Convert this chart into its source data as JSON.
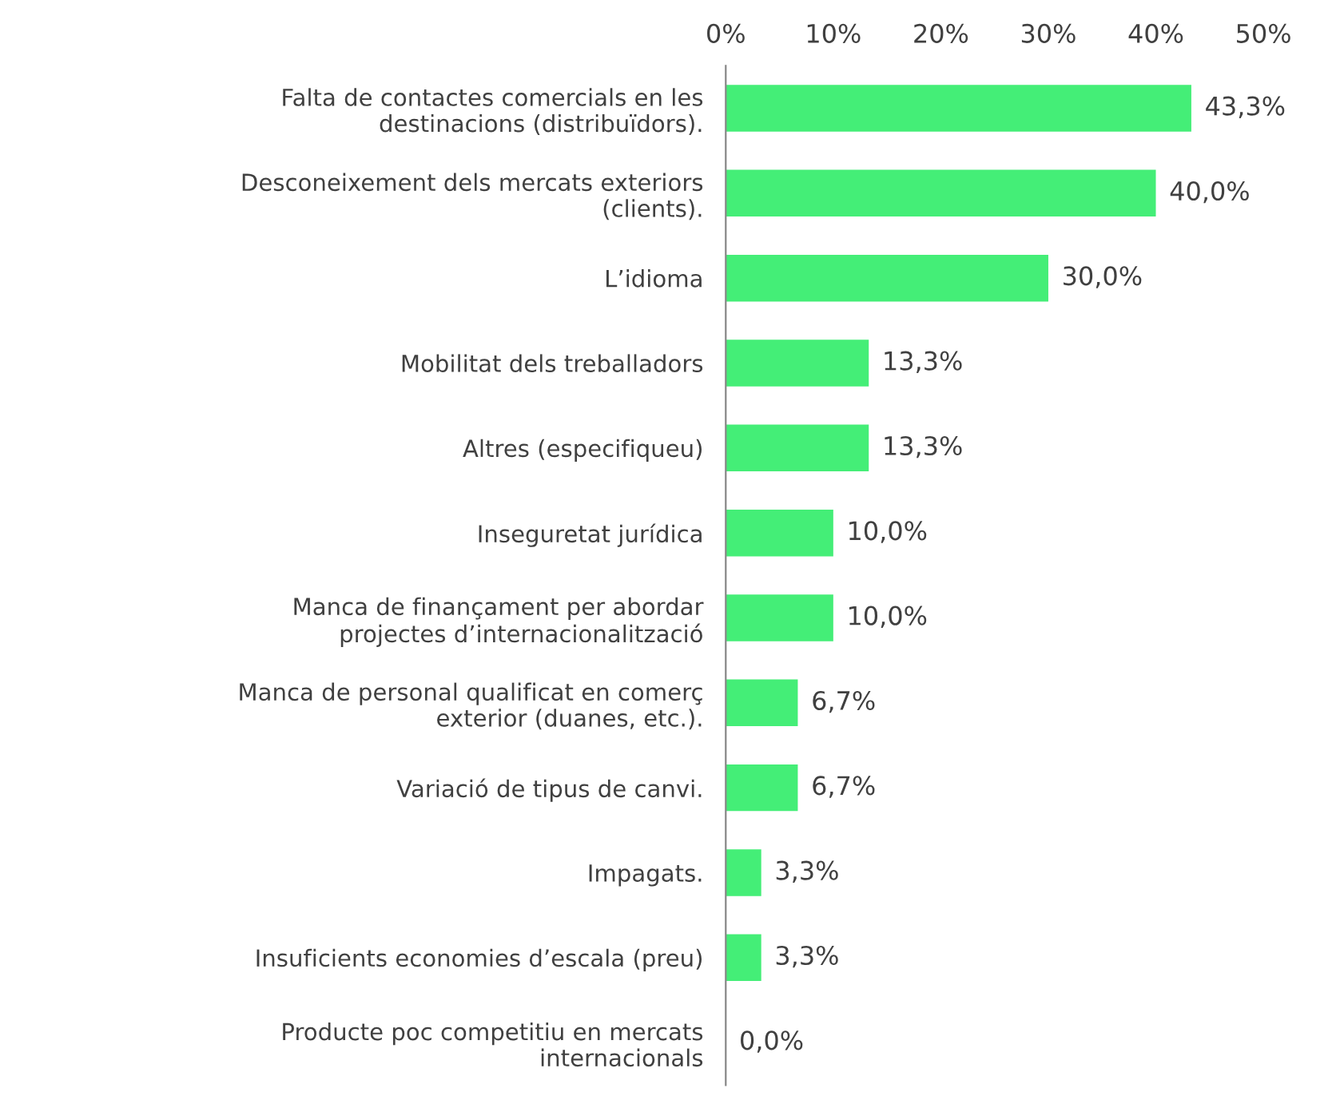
{
  "chart_data": {
    "type": "bar",
    "orientation": "horizontal",
    "categories": [
      "Falta de contactes comercials en les\ndestinacions (distribuïdors).",
      "Desconeixement dels mercats exteriors\n(clients).",
      "L’idioma",
      "Mobilitat dels treballadors",
      "Altres (especifiqueu)",
      "Inseguretat jurídica",
      "Manca de finançament per abordar\nprojectes d’internacionalització",
      "Manca de personal qualificat en comerç\nexterior (duanes, etc.).",
      "Variació de tipus de canvi.",
      "Impagats.",
      "Insuficients economies d’escala (preu)",
      "Producte poc competitiu en mercats\ninternacionals"
    ],
    "values": [
      43.3,
      40.0,
      30.0,
      13.3,
      13.3,
      10.0,
      10.0,
      6.7,
      6.7,
      3.3,
      3.3,
      0.0
    ],
    "value_labels": [
      "43,3%",
      "40,0%",
      "30,0%",
      "13,3%",
      "13,3%",
      "10,0%",
      "10,0%",
      "6,7%",
      "6,7%",
      "3,3%",
      "3,3%",
      "0,0%"
    ],
    "color": "#44ee77",
    "xlim": [
      0,
      50
    ],
    "xticks": [
      {
        "value": 0,
        "label": "0%"
      },
      {
        "value": 10,
        "label": "10%"
      },
      {
        "value": 20,
        "label": "20%"
      },
      {
        "value": 30,
        "label": "30%"
      },
      {
        "value": 40,
        "label": "40%"
      },
      {
        "value": 50,
        "label": "50%"
      }
    ],
    "grid": false,
    "legend": false
  }
}
